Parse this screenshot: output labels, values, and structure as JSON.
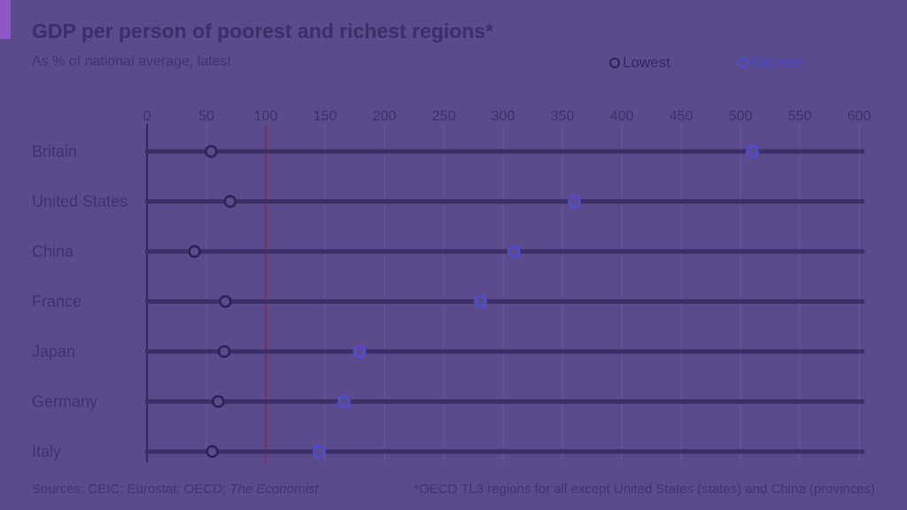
{
  "header": {
    "title": "GDP per person of poorest and richest regions*",
    "subtitle": "As % of national average, latest"
  },
  "legend": {
    "lowest": "Lowest",
    "highest": "Highest"
  },
  "footer": {
    "sources_prefix": "Sources: CEIC; Eurostat; OECD; ",
    "sources_publication": "The Economist",
    "note": "*OECD TL3 regions for all except United States (states) and China (provinces)"
  },
  "colors": {
    "background": "#5b4a8c",
    "lowest": "#2a2252",
    "highest": "#4c4ed6",
    "reference_line": "#8a2a4a",
    "track": "#3a2f66",
    "grid": "#6b5a98"
  },
  "chart_data": {
    "type": "dot-range",
    "title": "GDP per person of poorest and richest regions*",
    "subtitle": "As % of national average, latest",
    "xlabel": "",
    "ylabel": "",
    "xlim": [
      0,
      600
    ],
    "xticks": [
      0,
      50,
      100,
      150,
      200,
      250,
      300,
      350,
      400,
      450,
      500,
      550,
      600
    ],
    "reference_line": 100,
    "grid": true,
    "legend_position": "top-right",
    "categories": [
      "Britain",
      "United States",
      "China",
      "France",
      "Japan",
      "Germany",
      "Italy"
    ],
    "series": [
      {
        "name": "Lowest",
        "values": [
          54,
          70,
          40,
          66,
          65,
          60,
          55
        ]
      },
      {
        "name": "Highest",
        "values": [
          510,
          360,
          309,
          281,
          179,
          166,
          145
        ]
      }
    ]
  }
}
